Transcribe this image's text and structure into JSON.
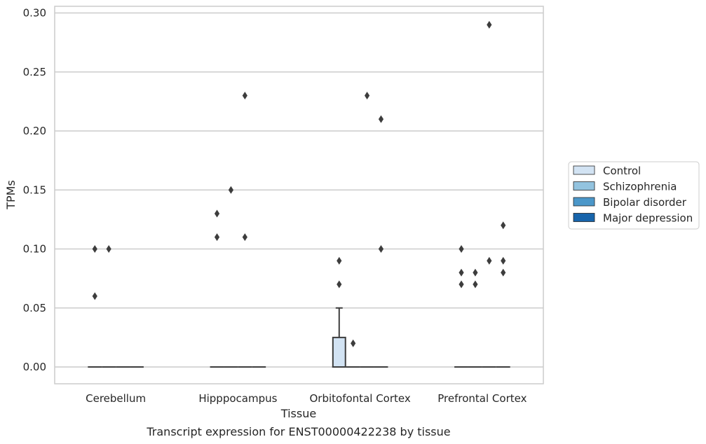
{
  "chart_data": {
    "type": "box",
    "title": "",
    "caption": "Transcript expression for ENST00000422238 by tissue",
    "xlabel": "Tissue",
    "ylabel": "TPMs",
    "ylim": [
      -0.015,
      0.3
    ],
    "yticks": [
      "0.00",
      "0.05",
      "0.10",
      "0.15",
      "0.20",
      "0.25",
      "0.30"
    ],
    "ytick_values": [
      0,
      0.05,
      0.1,
      0.15,
      0.2,
      0.25,
      0.3
    ],
    "grid": "horizontal",
    "legend_position": "right",
    "categories": [
      "Cerebellum",
      "Hipppocampus",
      "Orbitofontal Cortex",
      "Prefrontal Cortex"
    ],
    "series": [
      {
        "name": "Control",
        "color": "#d2e3f3"
      },
      {
        "name": "Schizophrenia",
        "color": "#93c3df"
      },
      {
        "name": "Bipolar disorder",
        "color": "#4b97c9"
      },
      {
        "name": "Major depression",
        "color": "#1764ab"
      }
    ],
    "boxes": [
      {
        "category": 0,
        "series": 0,
        "q1": 0,
        "median": 0,
        "q3": 0,
        "whisker_low": 0,
        "whisker_high": 0,
        "outliers": [
          0.1,
          0.06
        ]
      },
      {
        "category": 0,
        "series": 1,
        "q1": 0,
        "median": 0,
        "q3": 0,
        "whisker_low": 0,
        "whisker_high": 0,
        "outliers": [
          0.1
        ]
      },
      {
        "category": 0,
        "series": 2,
        "q1": 0,
        "median": 0,
        "q3": 0,
        "whisker_low": 0,
        "whisker_high": 0,
        "outliers": []
      },
      {
        "category": 0,
        "series": 3,
        "q1": 0,
        "median": 0,
        "q3": 0,
        "whisker_low": 0,
        "whisker_high": 0,
        "outliers": []
      },
      {
        "category": 1,
        "series": 0,
        "q1": 0,
        "median": 0,
        "q3": 0,
        "whisker_low": 0,
        "whisker_high": 0,
        "outliers": [
          0.13,
          0.11
        ]
      },
      {
        "category": 1,
        "series": 1,
        "q1": 0,
        "median": 0,
        "q3": 0,
        "whisker_low": 0,
        "whisker_high": 0,
        "outliers": [
          0.15
        ]
      },
      {
        "category": 1,
        "series": 2,
        "q1": 0,
        "median": 0,
        "q3": 0,
        "whisker_low": 0,
        "whisker_high": 0,
        "outliers": [
          0.23,
          0.11
        ]
      },
      {
        "category": 1,
        "series": 3,
        "q1": 0,
        "median": 0,
        "q3": 0,
        "whisker_low": 0,
        "whisker_high": 0,
        "outliers": []
      },
      {
        "category": 2,
        "series": 0,
        "q1": 0,
        "median": 0,
        "q3": 0.025,
        "whisker_low": 0,
        "whisker_high": 0.05,
        "outliers": [
          0.09,
          0.07
        ]
      },
      {
        "category": 2,
        "series": 1,
        "q1": 0,
        "median": 0,
        "q3": 0,
        "whisker_low": 0,
        "whisker_high": 0,
        "outliers": [
          0.02
        ]
      },
      {
        "category": 2,
        "series": 2,
        "q1": 0,
        "median": 0,
        "q3": 0,
        "whisker_low": 0,
        "whisker_high": 0,
        "outliers": [
          0.23
        ]
      },
      {
        "category": 2,
        "series": 3,
        "q1": 0,
        "median": 0,
        "q3": 0,
        "whisker_low": 0,
        "whisker_high": 0,
        "outliers": [
          0.21,
          0.1
        ]
      },
      {
        "category": 3,
        "series": 0,
        "q1": 0,
        "median": 0,
        "q3": 0,
        "whisker_low": 0,
        "whisker_high": 0,
        "outliers": [
          0.1,
          0.08,
          0.07
        ]
      },
      {
        "category": 3,
        "series": 1,
        "q1": 0,
        "median": 0,
        "q3": 0,
        "whisker_low": 0,
        "whisker_high": 0,
        "outliers": [
          0.08,
          0.07
        ]
      },
      {
        "category": 3,
        "series": 2,
        "q1": 0,
        "median": 0,
        "q3": 0,
        "whisker_low": 0,
        "whisker_high": 0,
        "outliers": [
          0.29,
          0.09
        ]
      },
      {
        "category": 3,
        "series": 3,
        "q1": 0,
        "median": 0,
        "q3": 0,
        "whisker_low": 0,
        "whisker_high": 0,
        "outliers": [
          0.12,
          0.09,
          0.08
        ]
      }
    ]
  }
}
